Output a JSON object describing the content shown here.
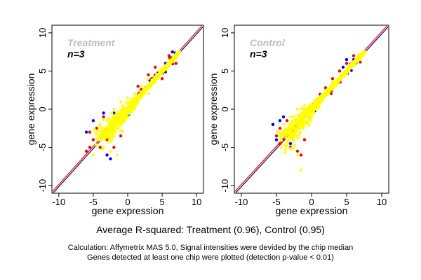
{
  "chart_data": [
    {
      "type": "scatter",
      "title": "Treatment",
      "subtitle": "n=3",
      "xlabel": "gene expression",
      "ylabel": "gene expression",
      "xlim": [
        -11,
        11
      ],
      "ylim": [
        -11,
        11
      ],
      "xticks": [
        -10,
        -5,
        0,
        5,
        10
      ],
      "yticks": [
        -10,
        -5,
        0,
        5,
        10
      ],
      "grid": false,
      "colors": {
        "bulk": "#ffff00",
        "outlier_a": "#ff0000",
        "outlier_b": "#0000ff",
        "line_1": "#ff0000",
        "line_2": "#000080"
      },
      "description": "Dense yellow cloud along identity line from about (-5,-3) to (8,8); red and blue outliers scattered around low-expression region",
      "series": [
        {
          "name": "yellow",
          "color": "#ffff00",
          "points": [
            [
              -4,
              -2
            ],
            [
              -3,
              -1.5
            ],
            [
              -2,
              -1
            ],
            [
              -1,
              -0.5
            ],
            [
              0,
              0
            ],
            [
              1,
              1
            ],
            [
              2,
              2
            ],
            [
              3,
              3
            ],
            [
              4,
              4
            ],
            [
              5,
              5
            ],
            [
              6,
              6
            ],
            [
              7,
              7
            ],
            [
              7.5,
              7.5
            ],
            [
              -3,
              -3
            ],
            [
              -2,
              -3
            ],
            [
              -1,
              -2
            ],
            [
              0,
              -1
            ],
            [
              1,
              0
            ],
            [
              2,
              1.5
            ],
            [
              3,
              2
            ],
            [
              4,
              3.5
            ],
            [
              -4,
              -4
            ],
            [
              -2,
              0
            ],
            [
              -1,
              1
            ],
            [
              0,
              1.5
            ],
            [
              1,
              2
            ],
            [
              2,
              3
            ],
            [
              3,
              4
            ],
            [
              -3.5,
              -5
            ],
            [
              -2.5,
              -5.5
            ],
            [
              -1.5,
              -6
            ],
            [
              -5,
              -6
            ]
          ]
        },
        {
          "name": "red",
          "color": "#ff0000",
          "points": [
            [
              -5.5,
              -3
            ],
            [
              -5,
              -4
            ],
            [
              -4.5,
              -2.5
            ],
            [
              -4,
              -5
            ],
            [
              -3,
              -4
            ],
            [
              -6,
              -5.5
            ],
            [
              -2,
              -5
            ],
            [
              -3.5,
              -1
            ],
            [
              5,
              4
            ],
            [
              6,
              7
            ],
            [
              7,
              6
            ],
            [
              3,
              4.5
            ],
            [
              4,
              5.5
            ],
            [
              -1,
              -3.5
            ],
            [
              -5.5,
              -5
            ],
            [
              1.5,
              3
            ]
          ]
        },
        {
          "name": "blue",
          "color": "#0000ff",
          "points": [
            [
              -5,
              -1.5
            ],
            [
              -3.5,
              -0.5
            ],
            [
              -2.5,
              -6.5
            ],
            [
              -4,
              -3.5
            ],
            [
              -6,
              -3
            ],
            [
              -2,
              -0.5
            ],
            [
              5.5,
              6
            ],
            [
              6.5,
              7.5
            ],
            [
              3.5,
              4
            ],
            [
              -3,
              -6
            ]
          ]
        }
      ],
      "lines": [
        {
          "slope": 1,
          "intercept": 0,
          "color": "#ff0000"
        },
        {
          "slope": 1,
          "intercept": 0,
          "color": "#000080"
        }
      ]
    },
    {
      "type": "scatter",
      "title": "Control",
      "subtitle": "n=3",
      "xlabel": "gene expression",
      "ylabel": "gene expression",
      "xlim": [
        -11,
        11
      ],
      "ylim": [
        -11,
        11
      ],
      "xticks": [
        -10,
        -5,
        0,
        5,
        10
      ],
      "yticks": [
        -10,
        -5,
        0,
        5,
        10
      ],
      "grid": false,
      "colors": {
        "bulk": "#ffff00",
        "outlier_a": "#ff0000",
        "outlier_b": "#0000ff",
        "line_1": "#ff0000",
        "line_2": "#000080"
      },
      "description": "Dense yellow cloud along identity line from about (-4,-4) to (8,8); red and blue outliers around low-expression region",
      "series": [
        {
          "name": "yellow",
          "color": "#ffff00",
          "points": [
            [
              -4,
              -3
            ],
            [
              -3,
              -2
            ],
            [
              -2,
              -1.5
            ],
            [
              -1,
              -1
            ],
            [
              0,
              0
            ],
            [
              1,
              1
            ],
            [
              2,
              2
            ],
            [
              3,
              3
            ],
            [
              4,
              4
            ],
            [
              5,
              5
            ],
            [
              6,
              6
            ],
            [
              7,
              7
            ],
            [
              7.5,
              7.5
            ],
            [
              -3,
              -3.5
            ],
            [
              -2,
              -2.5
            ],
            [
              -1,
              -0.5
            ],
            [
              0,
              0.5
            ],
            [
              1,
              1.5
            ],
            [
              2,
              2.5
            ],
            [
              3,
              3.5
            ],
            [
              -4,
              -2
            ],
            [
              -3,
              -1
            ],
            [
              -2,
              0
            ],
            [
              -1,
              0.5
            ],
            [
              -2,
              -6
            ],
            [
              -1.5,
              -8
            ],
            [
              -2.5,
              -5
            ]
          ]
        },
        {
          "name": "red",
          "color": "#ff0000",
          "points": [
            [
              -5,
              -3.5
            ],
            [
              -4.5,
              -2.5
            ],
            [
              -4,
              -4
            ],
            [
              -3,
              -5
            ],
            [
              -2,
              -5.5
            ],
            [
              -5.5,
              -2
            ],
            [
              -3.5,
              -1.5
            ],
            [
              4,
              5
            ],
            [
              5,
              6
            ],
            [
              6,
              7
            ],
            [
              3,
              4
            ],
            [
              -1,
              -4
            ],
            [
              -4.5,
              -4.5
            ],
            [
              -1.5,
              -6
            ],
            [
              2,
              2.8
            ]
          ]
        },
        {
          "name": "blue",
          "color": "#0000ff",
          "points": [
            [
              -5.5,
              -2
            ],
            [
              -4,
              -1
            ],
            [
              -3,
              -4.5
            ],
            [
              -2.5,
              -2.5
            ],
            [
              -5,
              -4
            ],
            [
              5,
              6.5
            ],
            [
              6,
              6.5
            ],
            [
              4.5,
              5.5
            ],
            [
              -4.5,
              -1.5
            ]
          ]
        }
      ],
      "lines": [
        {
          "slope": 1,
          "intercept": 0,
          "color": "#ff0000"
        },
        {
          "slope": 1,
          "intercept": 0,
          "color": "#000080"
        }
      ]
    }
  ],
  "captions": {
    "main": "Average R-squared: Treatment (0.96), Control (0.95)",
    "line1": "Calculation: Affymetrix MAS 5.0, Signal intensities were devided by the chip median",
    "line2": "Genes detected at least one chip were plotted (detection p-value < 0.01)"
  },
  "panel_title_color": "#bebebe",
  "panel_subtitle_color": "#000000"
}
